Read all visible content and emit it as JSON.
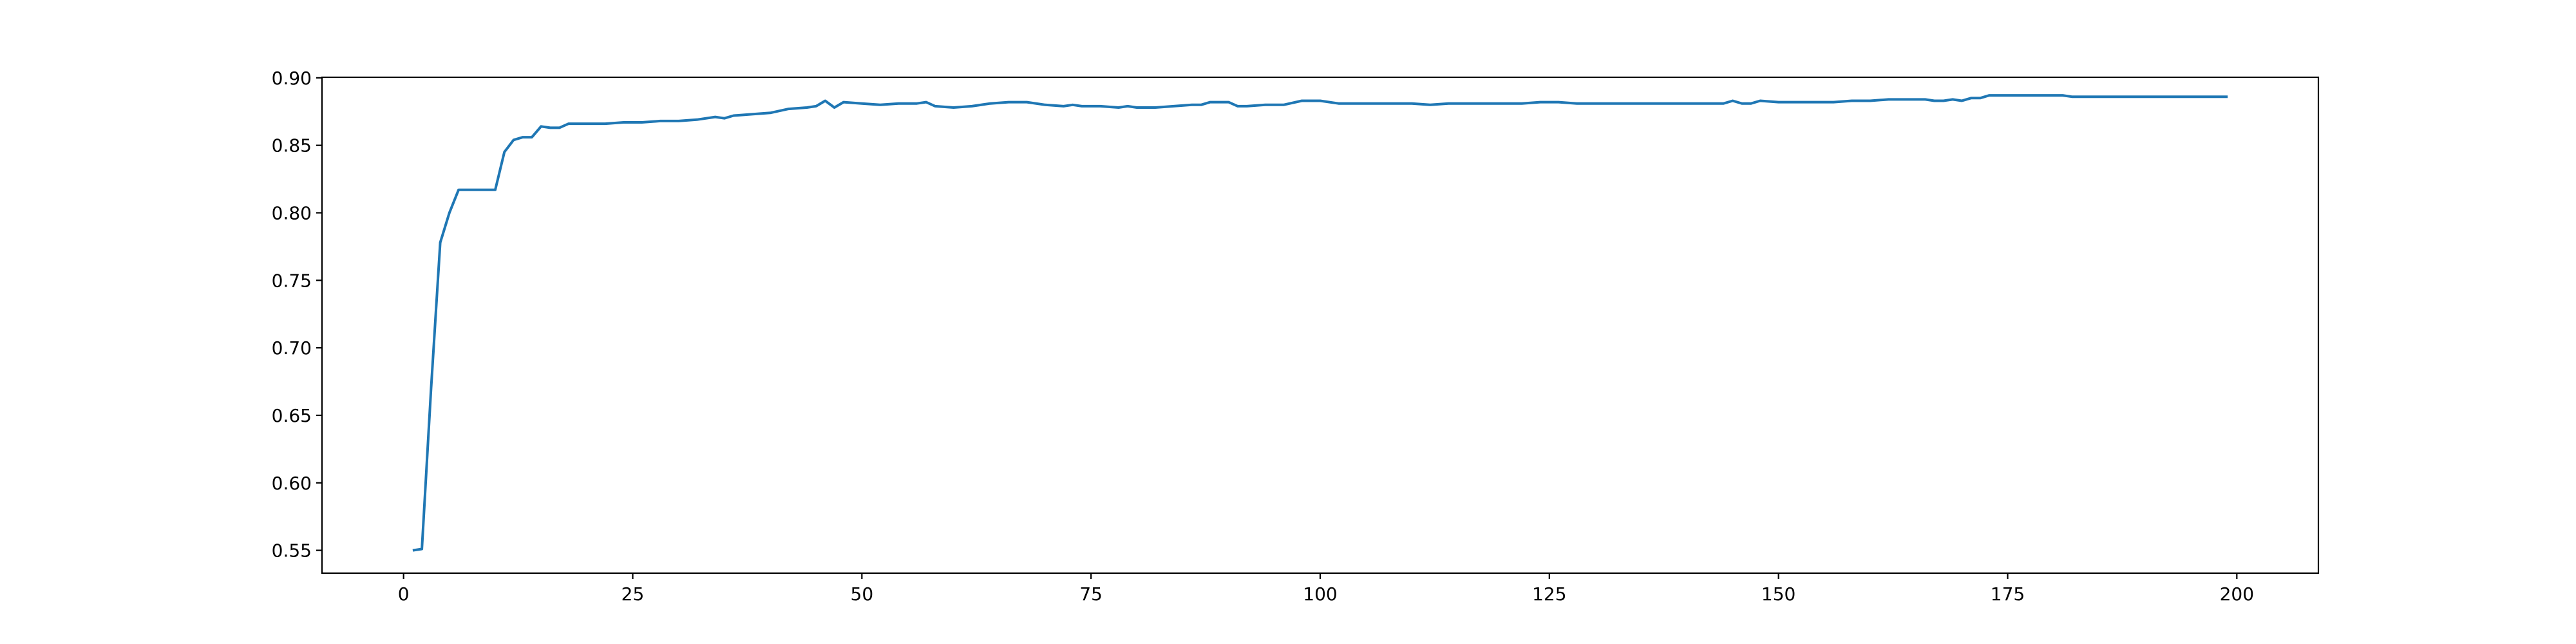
{
  "chart_data": {
    "type": "line",
    "title": "",
    "xlabel": "",
    "ylabel": "",
    "xlim": [
      -8.9,
      208.9
    ],
    "ylim": [
      0.5331,
      0.9004
    ],
    "x_ticks": [
      0,
      25,
      50,
      75,
      100,
      125,
      150,
      175,
      200
    ],
    "y_ticks": [
      0.55,
      0.6,
      0.65,
      0.7,
      0.75,
      0.8,
      0.85,
      0.9
    ],
    "x_tick_labels": [
      "0",
      "25",
      "50",
      "75",
      "100",
      "125",
      "150",
      "175",
      "200"
    ],
    "y_tick_labels": [
      "0.55",
      "0.60",
      "0.65",
      "0.70",
      "0.75",
      "0.80",
      "0.85",
      "0.90"
    ],
    "grid": false,
    "legend": "none",
    "series": [
      {
        "color": "#1f77b4",
        "points": [
          [
            1,
            0.55
          ],
          [
            2,
            0.551
          ],
          [
            3,
            0.67
          ],
          [
            4,
            0.778
          ],
          [
            5,
            0.8
          ],
          [
            6,
            0.817
          ],
          [
            7,
            0.817
          ],
          [
            8,
            0.817
          ],
          [
            9,
            0.817
          ],
          [
            10,
            0.817
          ],
          [
            11,
            0.845
          ],
          [
            12,
            0.854
          ],
          [
            13,
            0.856
          ],
          [
            14,
            0.856
          ],
          [
            15,
            0.864
          ],
          [
            16,
            0.863
          ],
          [
            17,
            0.863
          ],
          [
            18,
            0.866
          ],
          [
            19,
            0.866
          ],
          [
            20,
            0.866
          ],
          [
            22,
            0.866
          ],
          [
            24,
            0.867
          ],
          [
            26,
            0.867
          ],
          [
            28,
            0.868
          ],
          [
            30,
            0.868
          ],
          [
            32,
            0.869
          ],
          [
            34,
            0.871
          ],
          [
            35,
            0.87
          ],
          [
            36,
            0.872
          ],
          [
            38,
            0.873
          ],
          [
            40,
            0.874
          ],
          [
            42,
            0.877
          ],
          [
            44,
            0.878
          ],
          [
            45,
            0.879
          ],
          [
            46,
            0.883
          ],
          [
            47,
            0.878
          ],
          [
            48,
            0.882
          ],
          [
            50,
            0.881
          ],
          [
            52,
            0.88
          ],
          [
            54,
            0.881
          ],
          [
            56,
            0.881
          ],
          [
            57,
            0.882
          ],
          [
            58,
            0.879
          ],
          [
            60,
            0.878
          ],
          [
            62,
            0.879
          ],
          [
            64,
            0.881
          ],
          [
            66,
            0.882
          ],
          [
            68,
            0.882
          ],
          [
            70,
            0.88
          ],
          [
            72,
            0.879
          ],
          [
            73,
            0.88
          ],
          [
            74,
            0.879
          ],
          [
            76,
            0.879
          ],
          [
            78,
            0.878
          ],
          [
            79,
            0.879
          ],
          [
            80,
            0.878
          ],
          [
            82,
            0.878
          ],
          [
            84,
            0.879
          ],
          [
            86,
            0.88
          ],
          [
            87,
            0.88
          ],
          [
            88,
            0.882
          ],
          [
            90,
            0.882
          ],
          [
            91,
            0.879
          ],
          [
            92,
            0.879
          ],
          [
            94,
            0.88
          ],
          [
            96,
            0.88
          ],
          [
            98,
            0.883
          ],
          [
            100,
            0.883
          ],
          [
            102,
            0.881
          ],
          [
            104,
            0.881
          ],
          [
            106,
            0.881
          ],
          [
            108,
            0.881
          ],
          [
            110,
            0.881
          ],
          [
            112,
            0.88
          ],
          [
            114,
            0.881
          ],
          [
            116,
            0.881
          ],
          [
            118,
            0.881
          ],
          [
            120,
            0.881
          ],
          [
            122,
            0.881
          ],
          [
            124,
            0.882
          ],
          [
            126,
            0.882
          ],
          [
            128,
            0.881
          ],
          [
            130,
            0.881
          ],
          [
            135,
            0.881
          ],
          [
            140,
            0.881
          ],
          [
            144,
            0.881
          ],
          [
            145,
            0.883
          ],
          [
            146,
            0.881
          ],
          [
            147,
            0.881
          ],
          [
            148,
            0.883
          ],
          [
            150,
            0.882
          ],
          [
            152,
            0.882
          ],
          [
            154,
            0.882
          ],
          [
            156,
            0.882
          ],
          [
            158,
            0.883
          ],
          [
            160,
            0.883
          ],
          [
            162,
            0.884
          ],
          [
            164,
            0.884
          ],
          [
            166,
            0.884
          ],
          [
            167,
            0.883
          ],
          [
            168,
            0.883
          ],
          [
            169,
            0.884
          ],
          [
            170,
            0.883
          ],
          [
            171,
            0.885
          ],
          [
            172,
            0.885
          ],
          [
            173,
            0.887
          ],
          [
            175,
            0.887
          ],
          [
            177,
            0.887
          ],
          [
            179,
            0.887
          ],
          [
            181,
            0.887
          ],
          [
            182,
            0.886
          ],
          [
            185,
            0.886
          ],
          [
            190,
            0.886
          ],
          [
            195,
            0.886
          ],
          [
            199,
            0.886
          ]
        ]
      }
    ]
  }
}
